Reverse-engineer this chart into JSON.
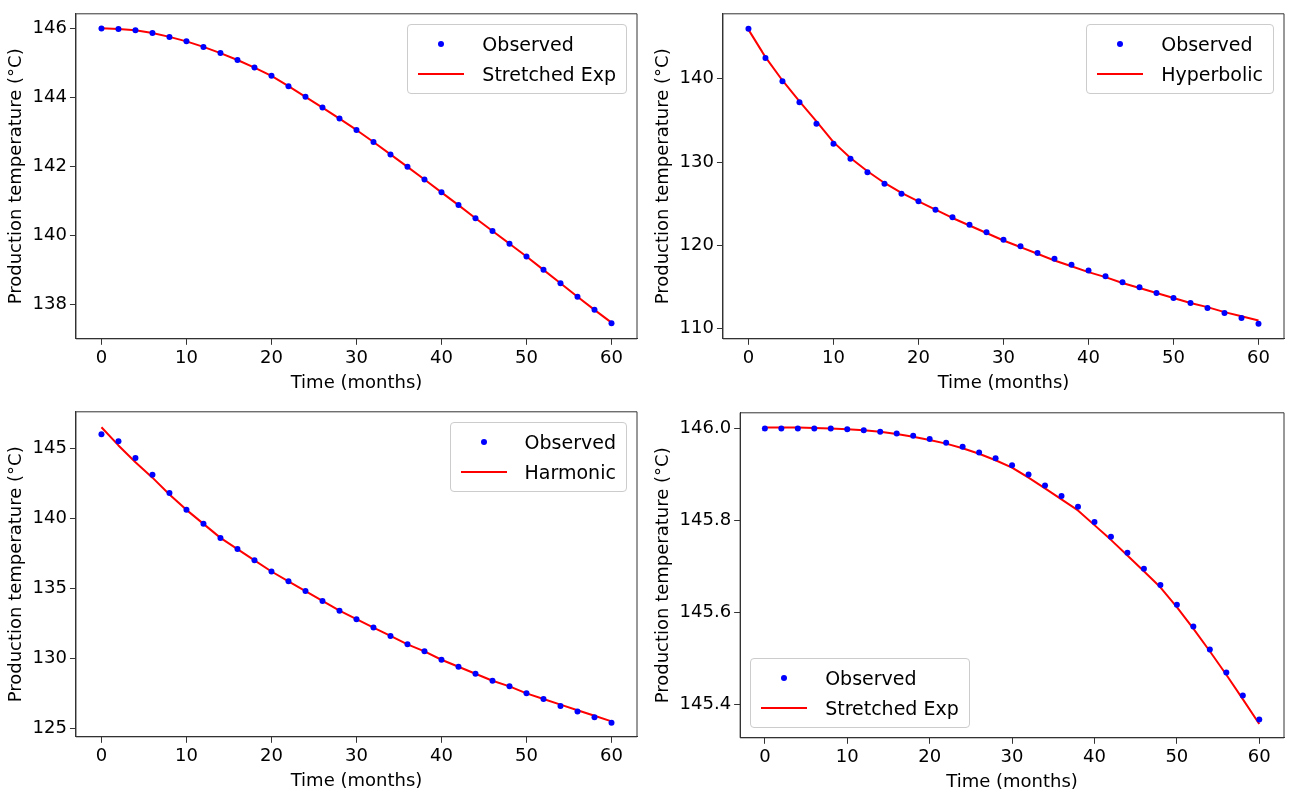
{
  "chart_data": [
    {
      "type": "scatter",
      "xlabel": "Time (months)",
      "ylabel": "Production temperature (°C)",
      "xlim": [
        -3,
        63
      ],
      "xticks": [
        0,
        10,
        20,
        30,
        40,
        50,
        60
      ],
      "ylim": [
        137.0,
        146.43
      ],
      "yticks": [
        138,
        140,
        142,
        144,
        146
      ],
      "legend": "top right",
      "grid": false,
      "x": [
        0,
        2,
        4,
        6,
        8,
        10,
        12,
        14,
        16,
        18,
        20,
        22,
        24,
        26,
        28,
        30,
        32,
        34,
        36,
        38,
        40,
        42,
        44,
        46,
        48,
        50,
        52,
        54,
        56,
        58,
        60
      ],
      "series": [
        {
          "name": "Observed",
          "marker": "circle",
          "color": "#0000ff",
          "values": [
            146.0,
            145.99,
            145.95,
            145.87,
            145.76,
            145.63,
            145.47,
            145.29,
            145.09,
            144.87,
            144.63,
            144.33,
            144.02,
            143.71,
            143.39,
            143.06,
            142.71,
            142.35,
            141.99,
            141.62,
            141.25,
            140.88,
            140.5,
            140.13,
            139.76,
            139.39,
            139.0,
            138.61,
            138.22,
            137.84,
            137.45
          ]
        },
        {
          "name": "Stretched Exp",
          "type": "line",
          "line_style": "solid",
          "color": "#ff0000",
          "values": [
            146.01,
            145.99,
            145.95,
            145.87,
            145.76,
            145.63,
            145.47,
            145.29,
            145.09,
            144.87,
            144.63,
            144.33,
            144.02,
            143.71,
            143.39,
            143.06,
            142.71,
            142.35,
            141.99,
            141.62,
            141.25,
            140.88,
            140.5,
            140.13,
            139.76,
            139.39,
            139.0,
            138.61,
            138.22,
            137.84,
            137.47
          ]
        }
      ]
    },
    {
      "type": "scatter",
      "xlabel": "Time (months)",
      "ylabel": "Production temperature (°C)",
      "xlim": [
        -3,
        63
      ],
      "xticks": [
        0,
        10,
        20,
        30,
        40,
        50,
        60
      ],
      "ylim": [
        108.8,
        147.8
      ],
      "yticks": [
        110,
        120,
        130,
        140
      ],
      "legend": "top right",
      "grid": false,
      "x": [
        0,
        2,
        4,
        6,
        8,
        10,
        12,
        14,
        16,
        18,
        20,
        22,
        24,
        26,
        28,
        30,
        32,
        34,
        36,
        38,
        40,
        42,
        44,
        46,
        48,
        50,
        52,
        54,
        56,
        58,
        60
      ],
      "series": [
        {
          "name": "Observed",
          "marker": "circle",
          "color": "#0000ff",
          "values": [
            146.0,
            142.5,
            139.7,
            137.2,
            134.6,
            132.2,
            130.4,
            128.8,
            127.4,
            126.2,
            125.3,
            124.3,
            123.4,
            122.5,
            121.6,
            120.7,
            119.9,
            119.1,
            118.4,
            117.7,
            117.0,
            116.3,
            115.6,
            115.0,
            114.3,
            113.7,
            113.1,
            112.5,
            111.9,
            111.3,
            110.6
          ]
        },
        {
          "name": "Hyperbolic",
          "type": "line",
          "line_style": "solid",
          "color": "#ff0000",
          "values": [
            145.9,
            142.6,
            139.8,
            137.3,
            134.9,
            132.4,
            130.5,
            128.9,
            127.5,
            126.3,
            125.3,
            124.3,
            123.3,
            122.4,
            121.5,
            120.6,
            119.8,
            119.0,
            118.2,
            117.5,
            116.8,
            116.2,
            115.5,
            114.9,
            114.3,
            113.7,
            113.1,
            112.6,
            112.0,
            111.5,
            111.0
          ]
        }
      ]
    },
    {
      "type": "scatter",
      "xlabel": "Time (months)",
      "ylabel": "Production temperature (°C)",
      "xlim": [
        -3,
        63
      ],
      "xticks": [
        0,
        10,
        20,
        30,
        40,
        50,
        60
      ],
      "ylim": [
        124.4,
        147.6
      ],
      "yticks": [
        125,
        130,
        135,
        140,
        145
      ],
      "legend": "top right",
      "grid": false,
      "x": [
        0,
        2,
        4,
        6,
        8,
        10,
        12,
        14,
        16,
        18,
        20,
        22,
        24,
        26,
        28,
        30,
        32,
        34,
        36,
        38,
        40,
        42,
        44,
        46,
        48,
        50,
        52,
        54,
        56,
        58,
        60
      ],
      "series": [
        {
          "name": "Observed",
          "marker": "circle",
          "color": "#0000ff",
          "values": [
            146.0,
            145.5,
            144.3,
            143.1,
            141.8,
            140.6,
            139.6,
            138.6,
            137.8,
            137.0,
            136.2,
            135.5,
            134.8,
            134.1,
            133.4,
            132.8,
            132.2,
            131.6,
            131.0,
            130.5,
            129.9,
            129.4,
            128.9,
            128.4,
            128.0,
            127.5,
            127.1,
            126.6,
            126.2,
            125.8,
            125.4
          ]
        },
        {
          "name": "Harmonic",
          "type": "line",
          "line_style": "solid",
          "color": "#ff0000",
          "values": [
            146.5,
            145.2,
            144.0,
            142.9,
            141.7,
            140.6,
            139.6,
            138.6,
            137.8,
            137.0,
            136.2,
            135.5,
            134.8,
            134.1,
            133.4,
            132.8,
            132.2,
            131.6,
            131.0,
            130.5,
            129.9,
            129.4,
            128.9,
            128.4,
            128.0,
            127.5,
            127.1,
            126.7,
            126.3,
            125.9,
            125.5
          ]
        }
      ]
    },
    {
      "type": "scatter",
      "xlabel": "Time (months)",
      "ylabel": "Production temperature (°C)",
      "xlim": [
        -3,
        63
      ],
      "xticks": [
        0,
        10,
        20,
        30,
        40,
        50,
        60
      ],
      "ylim": [
        145.328,
        146.034
      ],
      "yticks": [
        {
          "value": 145.4,
          "label": "145.4"
        },
        {
          "value": 145.6,
          "label": "145.6"
        },
        {
          "value": 145.8,
          "label": "145.8"
        },
        {
          "value": 146.0,
          "label": "146.0"
        }
      ],
      "legend": "bottom left",
      "grid": false,
      "x": [
        0,
        2,
        4,
        6,
        8,
        10,
        12,
        14,
        16,
        18,
        20,
        22,
        24,
        26,
        28,
        30,
        32,
        34,
        36,
        38,
        40,
        42,
        44,
        46,
        48,
        50,
        52,
        54,
        56,
        58,
        60
      ],
      "series": [
        {
          "name": "Observed",
          "marker": "circle",
          "color": "#0000ff",
          "values": [
            146.0,
            146.0,
            146.0,
            146.0,
            146.0,
            145.998,
            145.996,
            145.993,
            145.989,
            145.984,
            145.977,
            145.969,
            145.96,
            145.948,
            145.935,
            145.92,
            145.9,
            145.876,
            145.853,
            145.83,
            145.797,
            145.765,
            145.73,
            145.695,
            145.66,
            145.617,
            145.57,
            145.52,
            145.47,
            145.42,
            145.368
          ]
        },
        {
          "name": "Stretched Exp",
          "type": "line",
          "line_style": "solid",
          "color": "#ff0000",
          "values": [
            146.002,
            146.002,
            146.002,
            146.001,
            146.0,
            145.998,
            145.996,
            145.993,
            145.988,
            145.982,
            145.975,
            145.967,
            145.957,
            145.945,
            145.931,
            145.915,
            145.893,
            145.87,
            145.846,
            145.822,
            145.79,
            145.758,
            145.724,
            145.69,
            145.655,
            145.612,
            145.565,
            145.516,
            145.465,
            145.412,
            145.358
          ]
        }
      ]
    }
  ]
}
